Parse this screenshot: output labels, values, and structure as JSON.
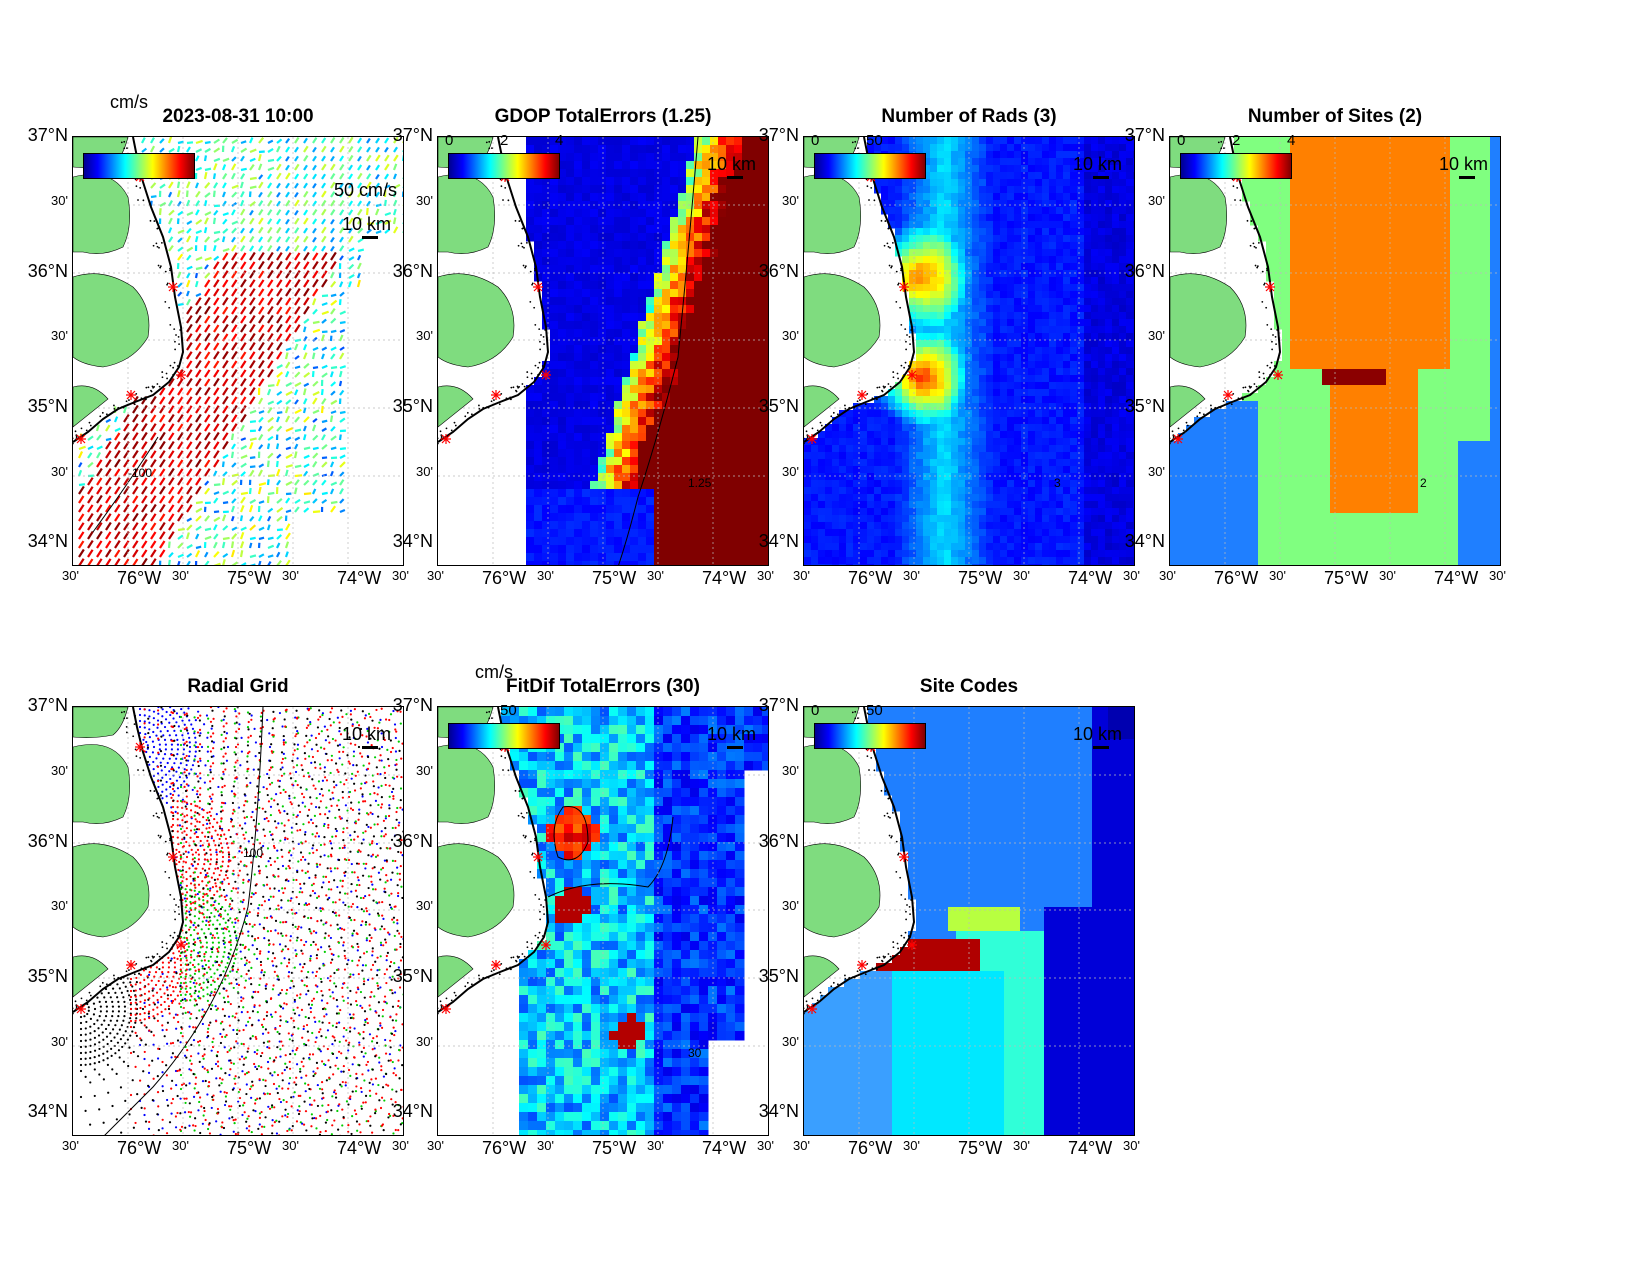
{
  "colors": {
    "land": "#7fdc7f",
    "site_marker": "#ff0000",
    "contour": "#000000"
  },
  "panels": [
    {
      "id": "p1",
      "title": "2023-08-31 10:00",
      "colorbar_unit": "cm/s",
      "colorbar_ticks": [
        "",
        "",
        ""
      ],
      "overlay_label": "50 cm/s",
      "scale_label": "10 km",
      "contour_label": "-100",
      "lat_labels": [
        "37°N",
        "30'",
        "36°N",
        "30'",
        "35°N",
        "30'",
        "34°N"
      ],
      "lon_labels": [
        "30'",
        "76°W",
        "30'",
        "75°W",
        "30'",
        "74°W",
        "30'"
      ],
      "kind": "vectors"
    },
    {
      "id": "p2",
      "title": "GDOP TotalErrors (1.25)",
      "colorbar_unit": "",
      "colorbar_ticks": [
        "0",
        "2",
        "4"
      ],
      "overlay_label": "",
      "scale_label": "10 km",
      "contour_label": "1.25",
      "lat_labels": [
        "37°N",
        "30'",
        "36°N",
        "30'",
        "35°N",
        "30'",
        "34°N"
      ],
      "lon_labels": [
        "30'",
        "76°W",
        "30'",
        "75°W",
        "30'",
        "74°W",
        "30'"
      ],
      "kind": "gdop"
    },
    {
      "id": "p3",
      "title": "Number of Rads (3)",
      "colorbar_unit": "",
      "colorbar_ticks": [
        "0",
        "50",
        ""
      ],
      "overlay_label": "",
      "scale_label": "10 km",
      "contour_label": "3",
      "lat_labels": [
        "37°N",
        "30'",
        "36°N",
        "30'",
        "35°N",
        "30'",
        "34°N"
      ],
      "lon_labels": [
        "30'",
        "76°W",
        "30'",
        "75°W",
        "30'",
        "74°W",
        "30'"
      ],
      "kind": "rads"
    },
    {
      "id": "p4",
      "title": "Number of Sites (2)",
      "colorbar_unit": "",
      "colorbar_ticks": [
        "0",
        "2",
        "4"
      ],
      "overlay_label": "",
      "scale_label": "10 km",
      "contour_label": "2",
      "lat_labels": [
        "37°N",
        "30'",
        "36°N",
        "30'",
        "35°N",
        "30'",
        "34°N"
      ],
      "lon_labels": [
        "30'",
        "76°W",
        "30'",
        "75°W",
        "30'",
        "74°W",
        "30'"
      ],
      "kind": "sites"
    },
    {
      "id": "p5",
      "title": "Radial Grid",
      "colorbar_unit": "",
      "colorbar_ticks": [
        "",
        "",
        ""
      ],
      "overlay_label": "",
      "scale_label": "10 km",
      "contour_label": "100",
      "lat_labels": [
        "37°N",
        "30'",
        "36°N",
        "30'",
        "35°N",
        "30'",
        "34°N"
      ],
      "lon_labels": [
        "30'",
        "76°W",
        "30'",
        "75°W",
        "30'",
        "74°W",
        "30'"
      ],
      "kind": "radial"
    },
    {
      "id": "p6",
      "title": "FitDif TotalErrors (30)",
      "colorbar_unit": "cm/s",
      "colorbar_ticks": [
        "",
        "50",
        ""
      ],
      "overlay_label": "",
      "scale_label": "10 km",
      "contour_label": "30",
      "lat_labels": [
        "37°N",
        "30'",
        "36°N",
        "30'",
        "35°N",
        "30'",
        "34°N"
      ],
      "lon_labels": [
        "30'",
        "76°W",
        "30'",
        "75°W",
        "30'",
        "74°W",
        "30'"
      ],
      "kind": "fitdif"
    },
    {
      "id": "p7",
      "title": "Site Codes",
      "colorbar_unit": "",
      "colorbar_ticks": [
        "0",
        "50",
        ""
      ],
      "overlay_label": "",
      "scale_label": "10 km",
      "contour_label": "",
      "lat_labels": [
        "37°N",
        "30'",
        "36°N",
        "30'",
        "35°N",
        "30'",
        "34°N"
      ],
      "lon_labels": [
        "30'",
        "76°W",
        "30'",
        "75°W",
        "30'",
        "74°W",
        "30'"
      ],
      "kind": "codes"
    }
  ]
}
